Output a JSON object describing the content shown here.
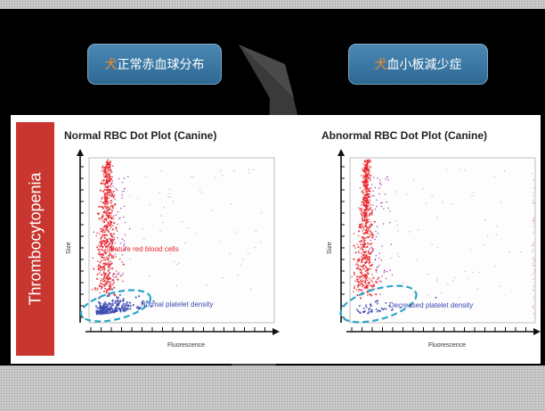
{
  "buttons": {
    "left": {
      "mark": "犬",
      "label": "正常赤血球分布"
    },
    "right": {
      "mark": "犬",
      "label": "血小板減少症"
    }
  },
  "sidebar_text": "Thrombocytopenia",
  "colors": {
    "sidebar": "#c8362f",
    "rbc": "#e8262c",
    "platelet": "#3a48b0",
    "ellipse": "#2aa6c8",
    "button": "#3a77a3",
    "button_mark": "#ff8a1e"
  },
  "chart_data": [
    {
      "type": "scatter",
      "title": "Normal RBC Dot Plot (Canine)",
      "xlabel": "Fluorescence",
      "ylabel": "Size",
      "annotations": [
        {
          "text": "Mature red blood cells",
          "series": "rbc"
        },
        {
          "text": "Normal platelet density",
          "series": "platelet"
        }
      ],
      "platelet_density": "normal"
    },
    {
      "type": "scatter",
      "title": "Abnormal RBC Dot Plot (Canine)",
      "xlabel": "Fluorescence",
      "ylabel": "Size",
      "annotations": [
        {
          "text": "Decreased platelet density",
          "series": "platelet"
        }
      ],
      "platelet_density": "decreased"
    }
  ]
}
